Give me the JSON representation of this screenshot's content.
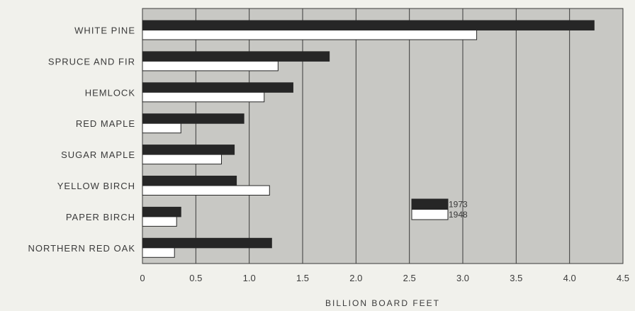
{
  "chart_data": {
    "type": "bar",
    "orientation": "horizontal",
    "categories": [
      "WHITE PINE",
      "SPRUCE AND FIR",
      "HEMLOCK",
      "RED MAPLE",
      "SUGAR MAPLE",
      "YELLOW BIRCH",
      "PAPER BIRCH",
      "NORTHERN RED OAK"
    ],
    "series": [
      {
        "name": "1973",
        "values": [
          4.23,
          1.75,
          1.41,
          0.95,
          0.86,
          0.88,
          0.36,
          1.21
        ]
      },
      {
        "name": "1948",
        "values": [
          3.13,
          1.27,
          1.14,
          0.36,
          0.74,
          1.19,
          0.32,
          0.3
        ]
      }
    ],
    "xlabel": "BILLION BOARD FEET",
    "xlim": [
      0,
      4.5
    ],
    "xticks": [
      "0",
      "0.5",
      "1.0",
      "1.5",
      "2.0",
      "2.5",
      "3.0",
      "3.5",
      "4.0",
      "4.5"
    ],
    "grid": "vertical",
    "legend_position": "center-right"
  },
  "colors": {
    "series_1973": "#262626",
    "series_1948": "#ffffff",
    "plot_bg": "#c8c8c4",
    "grid": "#3a3a3a",
    "page_bg": "#f1f1ec"
  }
}
